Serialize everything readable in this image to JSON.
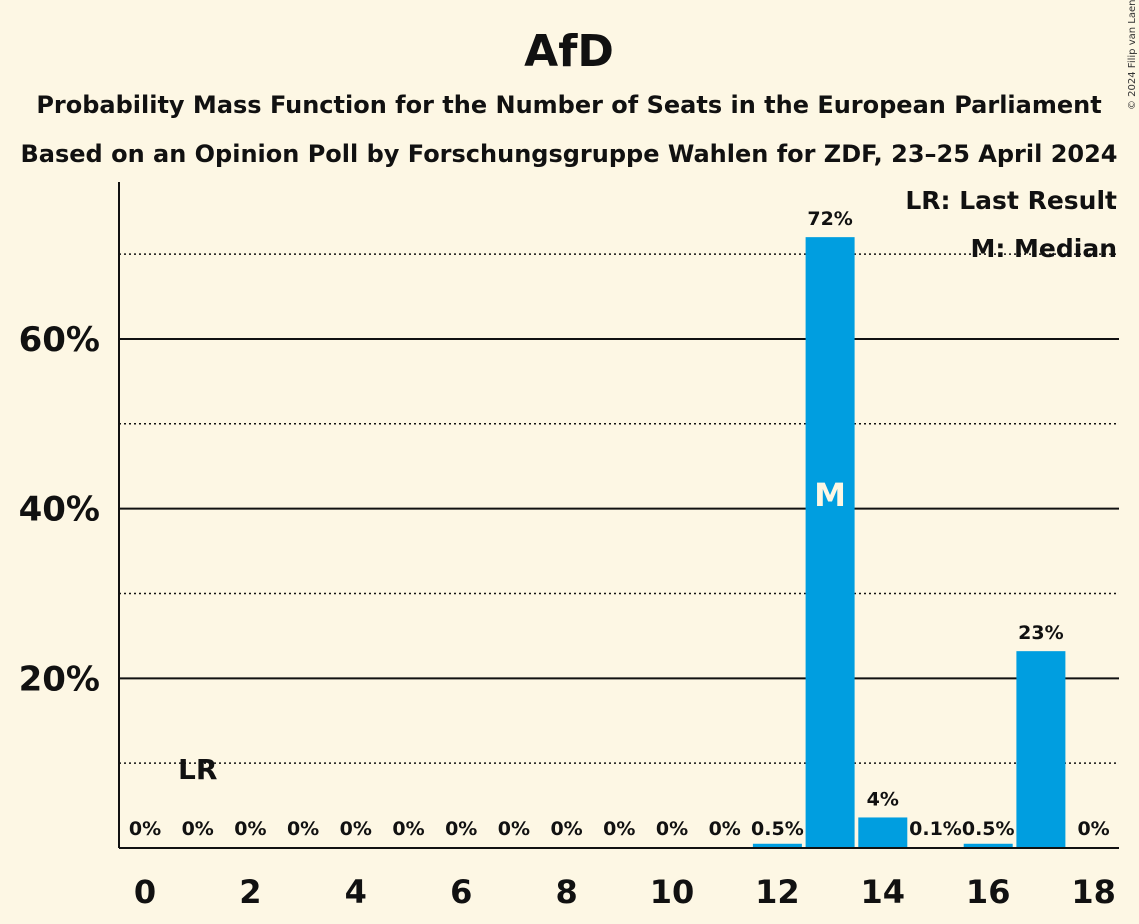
{
  "chart_data": {
    "type": "bar",
    "title": "AfD",
    "subtitle_lines": [
      "Probability Mass Function for the Number of Seats in the European Parliament",
      "Based on an Opinion Poll by Forschungsgruppe Wahlen for ZDF, 23–25 April 2024"
    ],
    "copyright": "© 2024 Filip van Laenen",
    "legend": {
      "placement": "top-right",
      "entries": [
        "LR: Last Result",
        "M: Median"
      ]
    },
    "x": [
      0,
      1,
      2,
      3,
      4,
      5,
      6,
      7,
      8,
      9,
      10,
      11,
      12,
      13,
      14,
      15,
      16,
      17,
      18
    ],
    "values": [
      0,
      0,
      0,
      0,
      0,
      0,
      0,
      0,
      0,
      0,
      0,
      0,
      0.5,
      72,
      3.6,
      0.1,
      0.5,
      23.2,
      0
    ],
    "data_labels": [
      "0%",
      "0%",
      "0%",
      "0%",
      "0%",
      "0%",
      "0%",
      "0%",
      "0%",
      "0%",
      "0%",
      "0%",
      "0.5%",
      "72%",
      "4%",
      "0.1%",
      "0.5%",
      "23%",
      "0%"
    ],
    "x_tick_labels": [
      "0",
      "2",
      "4",
      "6",
      "8",
      "10",
      "12",
      "14",
      "16",
      "18"
    ],
    "x_tick_values": [
      0,
      2,
      4,
      6,
      8,
      10,
      12,
      14,
      16,
      18
    ],
    "y_tick_labels": [
      "20%",
      "40%",
      "60%"
    ],
    "y_tick_values": [
      20,
      40,
      60
    ],
    "y_solid_grid": [
      20,
      40,
      60
    ],
    "y_dotted_grid": [
      10,
      30,
      50,
      70
    ],
    "ylim": [
      0,
      78.5
    ],
    "last_result": {
      "seat": 1,
      "label": "LR"
    },
    "median": {
      "seat": 13,
      "label": "M"
    },
    "bar_color": "#009ee0",
    "background_color": "#fdf7e4"
  }
}
